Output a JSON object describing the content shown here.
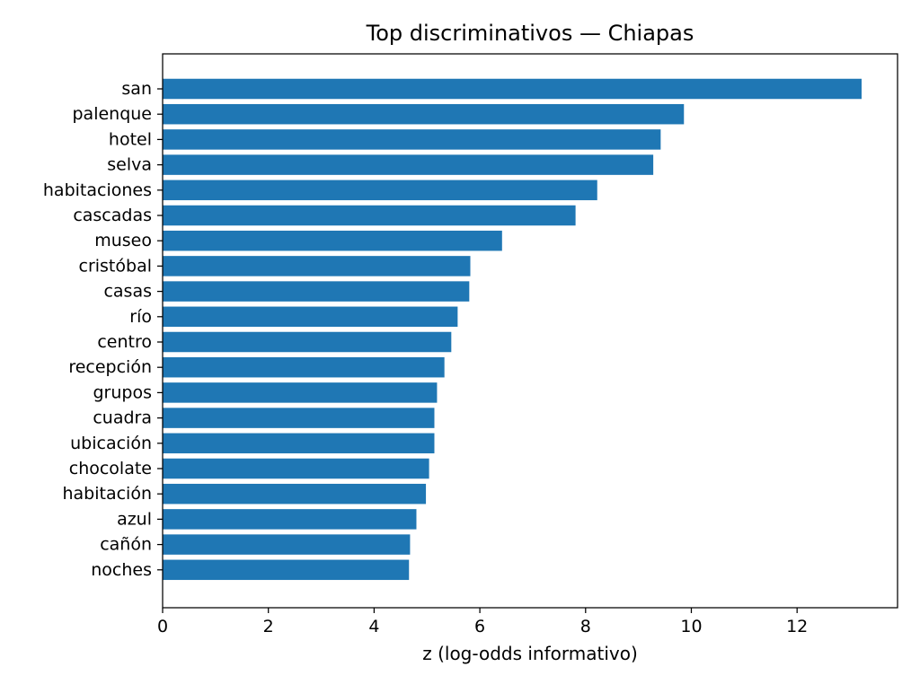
{
  "chart_data": {
    "type": "bar",
    "orientation": "horizontal",
    "title": "Top discriminativos — Chiapas",
    "xlabel": "z (log-odds informativo)",
    "ylabel": "",
    "xlim": [
      0,
      13.9
    ],
    "x_ticks": [
      0,
      2,
      4,
      6,
      8,
      10,
      12
    ],
    "grid": false,
    "bar_color": "#1f77b4",
    "categories": [
      "san",
      "palenque",
      "hotel",
      "selva",
      "habitaciones",
      "cascadas",
      "museo",
      "cristóbal",
      "casas",
      "río",
      "centro",
      "recepción",
      "grupos",
      "cuadra",
      "ubicación",
      "chocolate",
      "habitación",
      "azul",
      "cañón",
      "noches"
    ],
    "values": [
      13.22,
      9.86,
      9.42,
      9.28,
      8.22,
      7.81,
      6.42,
      5.82,
      5.8,
      5.58,
      5.46,
      5.33,
      5.19,
      5.14,
      5.14,
      5.04,
      4.98,
      4.8,
      4.68,
      4.66
    ]
  }
}
